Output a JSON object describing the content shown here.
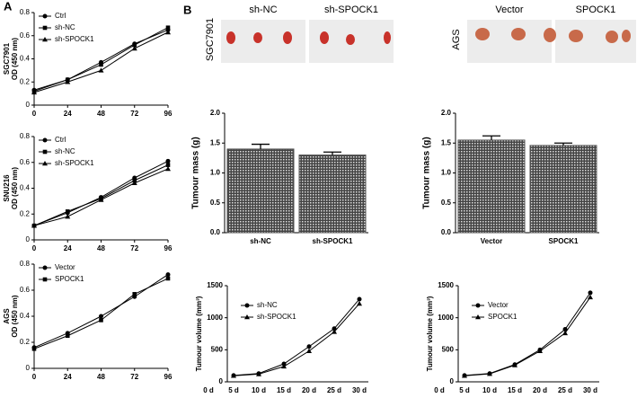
{
  "panel_labels": [
    "A",
    "B"
  ],
  "tumour_images": [
    {
      "cell_line": "SGC7901",
      "groups": [
        "sh-NC",
        "sh-SPOCK1"
      ]
    },
    {
      "cell_line": "AGS",
      "groups": [
        "Vector",
        "SPOCK1"
      ]
    }
  ],
  "chart_data": [
    {
      "type": "line",
      "cell_line": "SGC7901",
      "ylabel": "OD (450 nm)",
      "legend": "upper left",
      "x": [
        0,
        24,
        48,
        72,
        96
      ],
      "xlim": [
        0,
        96
      ],
      "xticks": [
        0,
        24,
        48,
        72,
        96
      ],
      "ylim": [
        0,
        0.8
      ],
      "yticks": [
        0,
        0.2,
        0.4,
        0.6,
        0.8
      ],
      "series": [
        {
          "name": "Ctrl",
          "color": "#000000",
          "marker": "circle",
          "values": [
            0.13,
            0.22,
            0.37,
            0.53,
            0.65
          ]
        },
        {
          "name": "sh-NC",
          "color": "#000000",
          "marker": "square",
          "values": [
            0.12,
            0.22,
            0.35,
            0.52,
            0.67
          ]
        },
        {
          "name": "sh-SPOCK1",
          "color": "#000000",
          "marker": "triangle",
          "values": [
            0.11,
            0.2,
            0.3,
            0.49,
            0.63
          ]
        }
      ]
    },
    {
      "type": "line",
      "cell_line": "SNU216",
      "ylabel": "OD (450 nm)",
      "legend": "upper left",
      "x": [
        0,
        24,
        48,
        72,
        96
      ],
      "xlim": [
        0,
        96
      ],
      "xticks": [
        0,
        24,
        48,
        72,
        96
      ],
      "ylim": [
        0,
        0.8
      ],
      "yticks": [
        0,
        0.2,
        0.4,
        0.6,
        0.8
      ],
      "series": [
        {
          "name": "Ctrl",
          "color": "#000000",
          "marker": "circle",
          "values": [
            0.11,
            0.21,
            0.33,
            0.48,
            0.61
          ]
        },
        {
          "name": "sh-NC",
          "color": "#000000",
          "marker": "square",
          "values": [
            0.11,
            0.22,
            0.32,
            0.46,
            0.58
          ]
        },
        {
          "name": "sh-SPOCK1",
          "color": "#000000",
          "marker": "triangle",
          "values": [
            0.11,
            0.18,
            0.31,
            0.44,
            0.55
          ]
        }
      ]
    },
    {
      "type": "line",
      "cell_line": "AGS",
      "ylabel": "OD (450 nm)",
      "legend": "upper left",
      "x": [
        0,
        24,
        48,
        72,
        96
      ],
      "xlim": [
        0,
        96
      ],
      "xticks": [
        0,
        24,
        48,
        72,
        96
      ],
      "ylim": [
        0,
        0.8
      ],
      "yticks": [
        0,
        0.2,
        0.4,
        0.6,
        0.8
      ],
      "series": [
        {
          "name": "Vector",
          "color": "#000000",
          "marker": "circle",
          "values": [
            0.16,
            0.27,
            0.4,
            0.55,
            0.72
          ]
        },
        {
          "name": "SPOCK1",
          "color": "#000000",
          "marker": "square",
          "values": [
            0.15,
            0.25,
            0.37,
            0.57,
            0.69
          ]
        }
      ]
    },
    {
      "type": "bar",
      "ylabel": "Tumour mass (g)",
      "categories": [
        "sh-NC",
        "sh-SPOCK1"
      ],
      "values": [
        1.4,
        1.3
      ],
      "errors": [
        0.08,
        0.05
      ],
      "color": "#555555",
      "ylim": [
        0,
        2
      ],
      "yticks": [
        {
          "value": 0,
          "label": "0.0"
        },
        0.5,
        {
          "value": 1,
          "label": "1.0"
        },
        1.5,
        {
          "value": 2,
          "label": "2.0"
        }
      ]
    },
    {
      "type": "bar",
      "ylabel": "Tumour mass (g)",
      "categories": [
        "Vector",
        "SPOCK1"
      ],
      "values": [
        1.55,
        1.46
      ],
      "errors": [
        0.07,
        0.04
      ],
      "color": "#555555",
      "ylim": [
        0,
        2
      ],
      "yticks": [
        {
          "value": 0,
          "label": "0.0"
        },
        0.5,
        {
          "value": 1,
          "label": "1.0"
        },
        1.5,
        {
          "value": 2,
          "label": "2.0"
        }
      ]
    },
    {
      "type": "line",
      "ylabel": "Tumour volume (mm³)",
      "legend": "upper left",
      "categories": [
        "0 d",
        "5 d",
        "10 d",
        "15 d",
        "20 d",
        "25 d",
        "30 d"
      ],
      "ylim": [
        0,
        1500
      ],
      "yticks": [
        0,
        500,
        1000,
        1500
      ],
      "series": [
        {
          "name": "sh-NC",
          "color": "#000000",
          "marker": "circle",
          "values": [
            null,
            100,
            130,
            280,
            550,
            830,
            1290
          ]
        },
        {
          "name": "sh-SPOCK1",
          "color": "#000000",
          "marker": "triangle",
          "values": [
            null,
            95,
            120,
            240,
            480,
            780,
            1220
          ]
        }
      ]
    },
    {
      "type": "line",
      "ylabel": "Tumour volume (mm³)",
      "legend": "upper left",
      "categories": [
        "0 d",
        "5 d",
        "10 d",
        "15 d",
        "20 d",
        "25 d",
        "30 d"
      ],
      "ylim": [
        0,
        1500
      ],
      "yticks": [
        0,
        500,
        1000,
        1500
      ],
      "series": [
        {
          "name": "Vector",
          "color": "#000000",
          "marker": "circle",
          "values": [
            null,
            100,
            130,
            270,
            500,
            820,
            1390
          ]
        },
        {
          "name": "SPOCK1",
          "color": "#000000",
          "marker": "triangle",
          "values": [
            null,
            95,
            125,
            260,
            480,
            760,
            1320
          ]
        }
      ]
    }
  ]
}
